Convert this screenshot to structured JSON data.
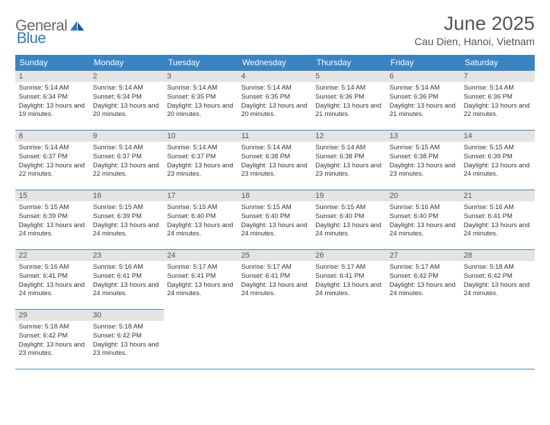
{
  "brand": {
    "general": "General",
    "blue": "Blue"
  },
  "title": "June 2025",
  "location": "Cau Dien, Hanoi, Vietnam",
  "colors": {
    "header_bg": "#3b84c4",
    "header_text": "#ffffff",
    "rule": "#3b84c4",
    "daynum_bg": "#e4e4e4",
    "text": "#333333",
    "brand_gray": "#6a6a6a",
    "brand_blue": "#2f79c2",
    "page_bg": "#ffffff"
  },
  "weekdays": [
    "Sunday",
    "Monday",
    "Tuesday",
    "Wednesday",
    "Thursday",
    "Friday",
    "Saturday"
  ],
  "weeks": [
    [
      {
        "n": "1",
        "sr": "5:14 AM",
        "ss": "6:34 PM",
        "dl": "13 hours and 19 minutes."
      },
      {
        "n": "2",
        "sr": "5:14 AM",
        "ss": "6:34 PM",
        "dl": "13 hours and 20 minutes."
      },
      {
        "n": "3",
        "sr": "5:14 AM",
        "ss": "6:35 PM",
        "dl": "13 hours and 20 minutes."
      },
      {
        "n": "4",
        "sr": "5:14 AM",
        "ss": "6:35 PM",
        "dl": "13 hours and 20 minutes."
      },
      {
        "n": "5",
        "sr": "5:14 AM",
        "ss": "6:36 PM",
        "dl": "13 hours and 21 minutes."
      },
      {
        "n": "6",
        "sr": "5:14 AM",
        "ss": "6:36 PM",
        "dl": "13 hours and 21 minutes."
      },
      {
        "n": "7",
        "sr": "5:14 AM",
        "ss": "6:36 PM",
        "dl": "13 hours and 22 minutes."
      }
    ],
    [
      {
        "n": "8",
        "sr": "5:14 AM",
        "ss": "6:37 PM",
        "dl": "13 hours and 22 minutes."
      },
      {
        "n": "9",
        "sr": "5:14 AM",
        "ss": "6:37 PM",
        "dl": "13 hours and 22 minutes."
      },
      {
        "n": "10",
        "sr": "5:14 AM",
        "ss": "6:37 PM",
        "dl": "13 hours and 23 minutes."
      },
      {
        "n": "11",
        "sr": "5:14 AM",
        "ss": "6:38 PM",
        "dl": "13 hours and 23 minutes."
      },
      {
        "n": "12",
        "sr": "5:14 AM",
        "ss": "6:38 PM",
        "dl": "13 hours and 23 minutes."
      },
      {
        "n": "13",
        "sr": "5:15 AM",
        "ss": "6:38 PM",
        "dl": "13 hours and 23 minutes."
      },
      {
        "n": "14",
        "sr": "5:15 AM",
        "ss": "6:39 PM",
        "dl": "13 hours and 24 minutes."
      }
    ],
    [
      {
        "n": "15",
        "sr": "5:15 AM",
        "ss": "6:39 PM",
        "dl": "13 hours and 24 minutes."
      },
      {
        "n": "16",
        "sr": "5:15 AM",
        "ss": "6:39 PM",
        "dl": "13 hours and 24 minutes."
      },
      {
        "n": "17",
        "sr": "5:15 AM",
        "ss": "6:40 PM",
        "dl": "13 hours and 24 minutes."
      },
      {
        "n": "18",
        "sr": "5:15 AM",
        "ss": "6:40 PM",
        "dl": "13 hours and 24 minutes."
      },
      {
        "n": "19",
        "sr": "5:15 AM",
        "ss": "6:40 PM",
        "dl": "13 hours and 24 minutes."
      },
      {
        "n": "20",
        "sr": "5:16 AM",
        "ss": "6:40 PM",
        "dl": "13 hours and 24 minutes."
      },
      {
        "n": "21",
        "sr": "5:16 AM",
        "ss": "6:41 PM",
        "dl": "13 hours and 24 minutes."
      }
    ],
    [
      {
        "n": "22",
        "sr": "5:16 AM",
        "ss": "6:41 PM",
        "dl": "13 hours and 24 minutes."
      },
      {
        "n": "23",
        "sr": "5:16 AM",
        "ss": "6:41 PM",
        "dl": "13 hours and 24 minutes."
      },
      {
        "n": "24",
        "sr": "5:17 AM",
        "ss": "6:41 PM",
        "dl": "13 hours and 24 minutes."
      },
      {
        "n": "25",
        "sr": "5:17 AM",
        "ss": "6:41 PM",
        "dl": "13 hours and 24 minutes."
      },
      {
        "n": "26",
        "sr": "5:17 AM",
        "ss": "6:41 PM",
        "dl": "13 hours and 24 minutes."
      },
      {
        "n": "27",
        "sr": "5:17 AM",
        "ss": "6:42 PM",
        "dl": "13 hours and 24 minutes."
      },
      {
        "n": "28",
        "sr": "5:18 AM",
        "ss": "6:42 PM",
        "dl": "13 hours and 24 minutes."
      }
    ],
    [
      {
        "n": "29",
        "sr": "5:18 AM",
        "ss": "6:42 PM",
        "dl": "13 hours and 23 minutes."
      },
      {
        "n": "30",
        "sr": "5:18 AM",
        "ss": "6:42 PM",
        "dl": "13 hours and 23 minutes."
      },
      null,
      null,
      null,
      null,
      null
    ]
  ],
  "labels": {
    "sunrise": "Sunrise: ",
    "sunset": "Sunset: ",
    "daylight": "Daylight: "
  }
}
